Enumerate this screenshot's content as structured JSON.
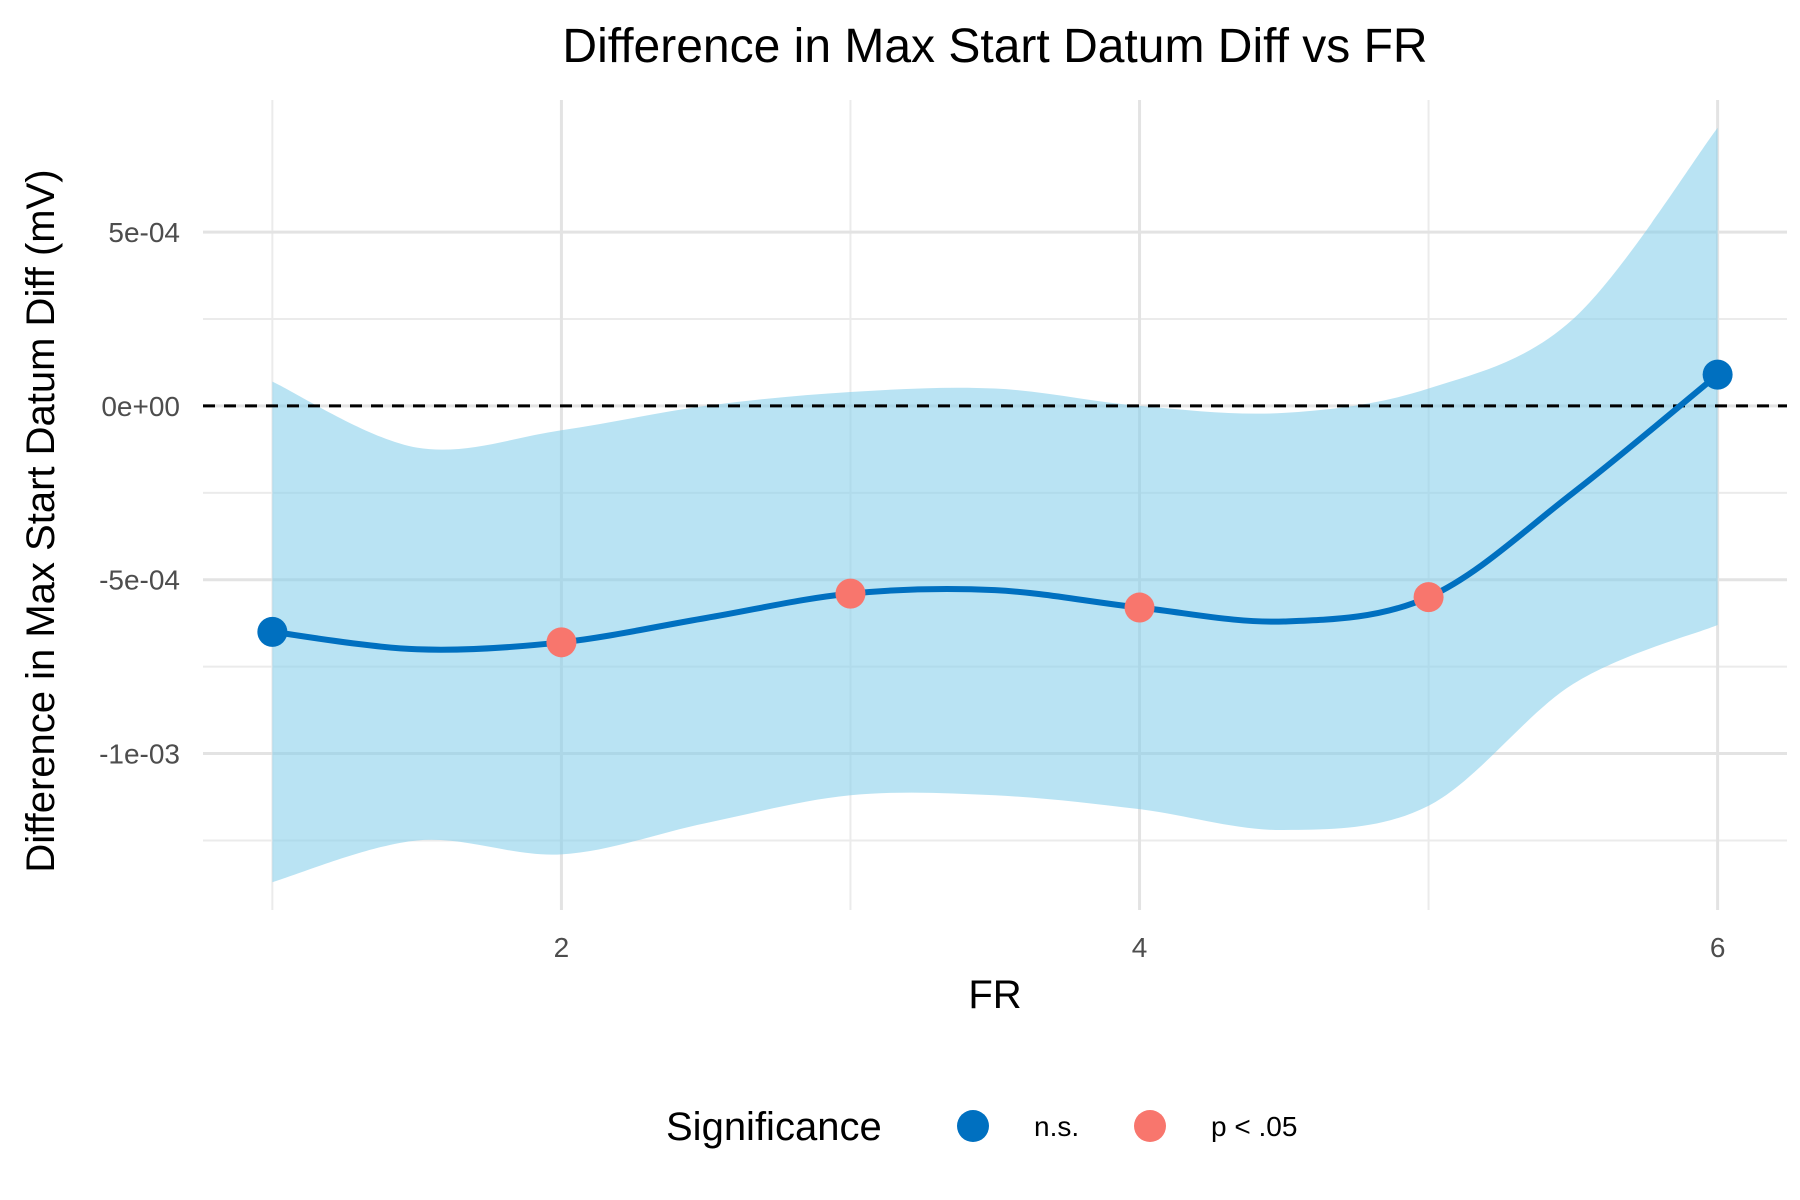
{
  "chart_data": {
    "type": "line",
    "title": "Difference in Max Start Datum Diff vs FR",
    "xlabel": "FR",
    "ylabel": "Difference in Max Start Datum Diff (mV)",
    "xlim": [
      0.76,
      6.24
    ],
    "ylim": [
      -0.00145,
      0.00088
    ],
    "x_ticks": [
      2,
      4,
      6
    ],
    "x_tick_labels": [
      "2",
      "4",
      "6"
    ],
    "y_ticks": [
      0.0005,
      0,
      -0.0005,
      -0.001
    ],
    "y_tick_labels": [
      "5e-04",
      "0e+00",
      "-5e-04",
      "-1e-03"
    ],
    "x_minor_ticks": [
      1,
      3,
      5
    ],
    "y_minor_ticks": [
      0.00025,
      -0.00025,
      -0.00075,
      -0.00125
    ],
    "grid": true,
    "reference_line": {
      "y": 0,
      "style": "dashed",
      "color": "#000000"
    },
    "points": [
      {
        "x": 1,
        "y": -0.00065,
        "group": "n.s."
      },
      {
        "x": 2,
        "y": -0.00068,
        "group": "p < .05"
      },
      {
        "x": 3,
        "y": -0.00054,
        "group": "p < .05"
      },
      {
        "x": 4,
        "y": -0.00058,
        "group": "p < .05"
      },
      {
        "x": 5,
        "y": -0.00055,
        "group": "p < .05"
      },
      {
        "x": 6,
        "y": 9e-05,
        "group": "n.s."
      }
    ],
    "smooth": {
      "color": "#0070c0",
      "x": [
        1,
        1.5,
        2,
        2.5,
        3,
        3.5,
        4,
        4.5,
        5,
        5.5,
        6
      ],
      "y": [
        -0.00065,
        -0.0007,
        -0.00068,
        -0.00061,
        -0.00054,
        -0.00053,
        -0.00058,
        -0.00062,
        -0.00055,
        -0.00025,
        9e-05
      ],
      "y_upper": [
        7e-05,
        -0.00012,
        -7e-05,
        0.0,
        4e-05,
        5e-05,
        0.0,
        -2e-05,
        5e-05,
        0.00025,
        0.0008
      ],
      "y_lower": [
        -0.00137,
        -0.00125,
        -0.00129,
        -0.0012,
        -0.00112,
        -0.00112,
        -0.00116,
        -0.00122,
        -0.00115,
        -0.0008,
        -0.00063
      ],
      "ribbon_color": "#87ceeb"
    },
    "legend": {
      "title": "Significance",
      "position": "bottom",
      "entries": [
        {
          "label": "n.s.",
          "color": "#0070c0"
        },
        {
          "label": "p < .05",
          "color": "#f8766d"
        }
      ]
    }
  }
}
